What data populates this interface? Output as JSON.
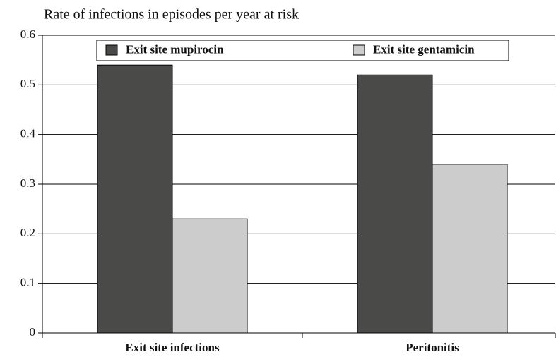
{
  "chart_data": {
    "type": "bar",
    "title": "Rate of infections in episodes per year at risk",
    "categories": [
      "Exit site infections",
      "Peritonitis"
    ],
    "series": [
      {
        "name": "Exit site mupirocin",
        "color": "#4a4a48",
        "values": [
          0.54,
          0.52
        ]
      },
      {
        "name": "Exit site gentamicin",
        "color": "#cccccc",
        "values": [
          0.23,
          0.34
        ]
      }
    ],
    "ylim": [
      0,
      0.6
    ],
    "yticks": [
      0,
      0.1,
      0.2,
      0.3,
      0.4,
      0.5,
      0.6
    ],
    "grid": true,
    "legend": "top"
  }
}
